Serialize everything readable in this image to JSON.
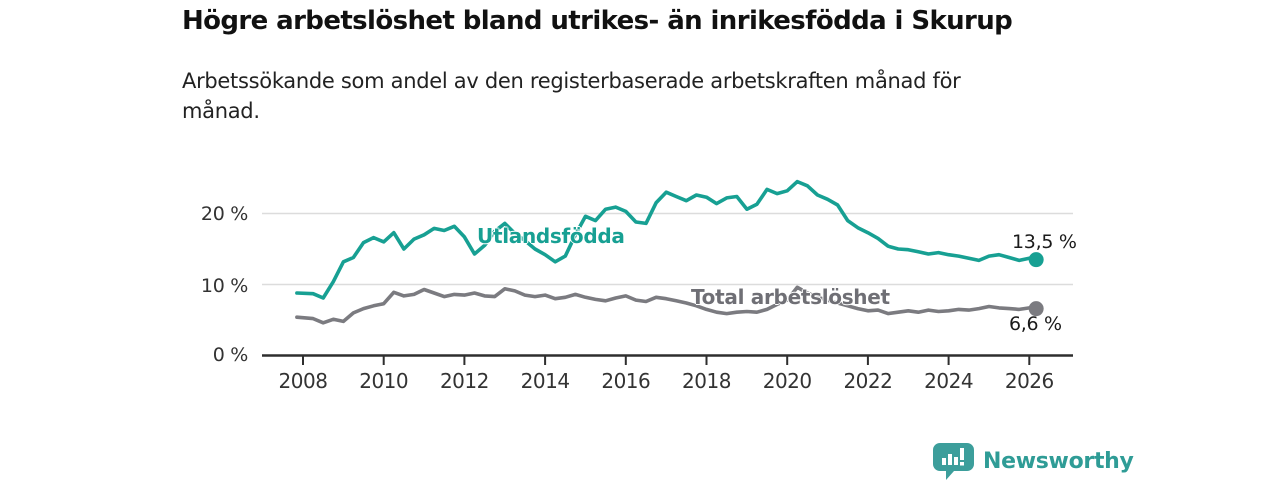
{
  "chart_data": {
    "type": "line",
    "title": "Högre arbetslöshet bland utrikes- än inrikesfödda i Skurup",
    "subtitle": "Arbetssökande som andel av den registerbaserade arbetskraften månad för månad.",
    "x_unit": "year",
    "y_unit": "percent",
    "xlim": [
      2007.85,
      2027.0
    ],
    "ylim": [
      0,
      25.5
    ],
    "grid": "horizontal",
    "legend": "inline-labels",
    "xticks": [
      2008,
      2010,
      2012,
      2014,
      2016,
      2018,
      2020,
      2022,
      2024,
      2026
    ],
    "yticks": [
      {
        "value": 0,
        "label": "0 %"
      },
      {
        "value": 10,
        "label": "10 %"
      },
      {
        "value": 20,
        "label": "20 %"
      }
    ],
    "x": [
      2007.85,
      2008.25,
      2008.5,
      2008.75,
      2009.0,
      2009.25,
      2009.5,
      2009.75,
      2010.0,
      2010.25,
      2010.5,
      2010.75,
      2011.0,
      2011.25,
      2011.5,
      2011.75,
      2012.0,
      2012.25,
      2012.5,
      2012.75,
      2013.0,
      2013.25,
      2013.5,
      2013.75,
      2014.0,
      2014.25,
      2014.5,
      2014.75,
      2015.0,
      2015.25,
      2015.5,
      2015.75,
      2016.0,
      2016.25,
      2016.5,
      2016.75,
      2017.0,
      2017.25,
      2017.5,
      2017.75,
      2018.0,
      2018.25,
      2018.5,
      2018.75,
      2019.0,
      2019.25,
      2019.5,
      2019.75,
      2020.0,
      2020.25,
      2020.5,
      2020.75,
      2021.0,
      2021.25,
      2021.5,
      2021.75,
      2022.0,
      2022.25,
      2022.5,
      2022.75,
      2023.0,
      2023.25,
      2023.5,
      2023.75,
      2024.0,
      2024.25,
      2024.5,
      2024.75,
      2025.0,
      2025.25,
      2025.5,
      2025.75,
      2026.0,
      2026.17
    ],
    "series": [
      {
        "name": "Utlandsfödda",
        "color": "#17a093",
        "end_label": "13,5 %",
        "end_value": 13.5,
        "values": [
          8.8,
          8.7,
          8.1,
          10.4,
          13.2,
          13.8,
          15.9,
          16.6,
          16.0,
          17.3,
          15.0,
          16.4,
          17.0,
          17.9,
          17.6,
          18.2,
          16.7,
          14.3,
          15.5,
          17.5,
          18.6,
          17.2,
          16.2,
          15.0,
          14.2,
          13.2,
          14.0,
          17.0,
          19.6,
          19.0,
          20.6,
          20.9,
          20.3,
          18.8,
          18.6,
          21.5,
          23.0,
          22.4,
          21.8,
          22.6,
          22.3,
          21.4,
          22.2,
          22.4,
          20.6,
          21.3,
          23.4,
          22.8,
          23.2,
          24.5,
          23.9,
          22.6,
          22.0,
          21.2,
          19.0,
          18.0,
          17.3,
          16.5,
          15.4,
          15.0,
          14.9,
          14.6,
          14.3,
          14.5,
          14.2,
          14.0,
          13.7,
          13.4,
          14.0,
          14.2,
          13.8,
          13.4,
          13.7,
          13.5
        ]
      },
      {
        "name": "Total arbetslöshet",
        "color": "#7b7b80",
        "end_label": "6,6 %",
        "end_value": 6.6,
        "values": [
          5.4,
          5.2,
          4.6,
          5.1,
          4.8,
          6.0,
          6.6,
          7.0,
          7.3,
          8.9,
          8.4,
          8.6,
          9.3,
          8.8,
          8.3,
          8.6,
          8.5,
          8.8,
          8.4,
          8.3,
          9.4,
          9.1,
          8.5,
          8.3,
          8.5,
          8.0,
          8.2,
          8.6,
          8.2,
          7.9,
          7.7,
          8.1,
          8.4,
          7.8,
          7.6,
          8.2,
          8.0,
          7.7,
          7.4,
          7.0,
          6.5,
          6.1,
          5.9,
          6.1,
          6.2,
          6.1,
          6.5,
          7.2,
          7.8,
          9.6,
          8.8,
          8.2,
          7.8,
          7.4,
          7.0,
          6.6,
          6.3,
          6.4,
          5.9,
          6.1,
          6.3,
          6.1,
          6.4,
          6.2,
          6.3,
          6.5,
          6.4,
          6.6,
          6.9,
          6.7,
          6.6,
          6.5,
          6.7,
          6.6
        ]
      }
    ]
  },
  "branding": {
    "logo_text": "Newsworthy",
    "logo_icon": "bar-chart-speech-bubble-icon",
    "color": "#3c9e9b"
  },
  "style": {
    "axis_color": "#2e2e2e",
    "grid_color": "#dcdcdc",
    "tick_label_color": "#333333"
  }
}
